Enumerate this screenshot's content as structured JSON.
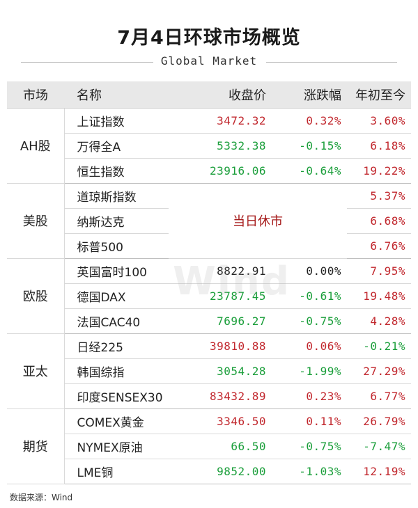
{
  "title": "7月4日环球市场概览",
  "subtitle": "Global Market",
  "headers": {
    "market": "市场",
    "name": "名称",
    "close": "收盘价",
    "change": "涨跌幅",
    "ytd": "年初至今"
  },
  "groups": {
    "ah": {
      "market": "AH股",
      "rows": [
        {
          "name": "上证指数",
          "close": "3472.32",
          "change": "0.32%",
          "ytd": "3.60%"
        },
        {
          "name": "万得全A",
          "close": "5332.38",
          "change": "-0.15%",
          "ytd": "6.18%"
        },
        {
          "name": "恒生指数",
          "close": "23916.06",
          "change": "-0.64%",
          "ytd": "19.22%"
        }
      ]
    },
    "us": {
      "market": "美股",
      "closed_text": "当日休市",
      "rows": [
        {
          "name": "道琼斯指数",
          "ytd": "5.37%"
        },
        {
          "name": "纳斯达克",
          "ytd": "6.68%"
        },
        {
          "name": "标普500",
          "ytd": "6.76%"
        }
      ]
    },
    "eu": {
      "market": "欧股",
      "rows": [
        {
          "name": "英国富时100",
          "close": "8822.91",
          "change": "0.00%",
          "ytd": "7.95%"
        },
        {
          "name": "德国DAX",
          "close": "23787.45",
          "change": "-0.61%",
          "ytd": "19.48%"
        },
        {
          "name": "法国CAC40",
          "close": "7696.27",
          "change": "-0.75%",
          "ytd": "4.28%"
        }
      ]
    },
    "ap": {
      "market": "亚太",
      "rows": [
        {
          "name": "日经225",
          "close": "39810.88",
          "change": "0.06%",
          "ytd": "-0.21%"
        },
        {
          "name": "韩国综指",
          "close": "3054.28",
          "change": "-1.99%",
          "ytd": "27.29%"
        },
        {
          "name": "印度SENSEX30",
          "close": "83432.89",
          "change": "0.23%",
          "ytd": "6.77%"
        }
      ]
    },
    "fut": {
      "market": "期货",
      "rows": [
        {
          "name": "COMEX黄金",
          "close": "3346.50",
          "change": "0.11%",
          "ytd": "26.79%"
        },
        {
          "name": "NYMEX原油",
          "close": "66.50",
          "change": "-0.75%",
          "ytd": "-7.47%"
        },
        {
          "name": "LME铜",
          "close": "9852.00",
          "change": "-1.03%",
          "ytd": "12.19%"
        }
      ]
    }
  },
  "watermark": "Wind",
  "source": "数据来源：Wind",
  "colors": {
    "up": "#c1272d",
    "down": "#1a9e3a",
    "flat": "#222222",
    "header_bg": "#e8e8e8"
  }
}
